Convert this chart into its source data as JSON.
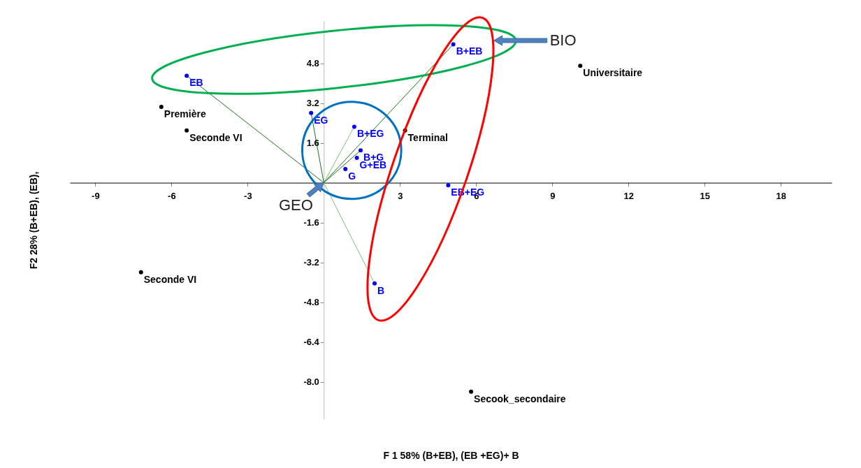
{
  "chart_data": {
    "type": "scatter",
    "xlabel": "F 1 58% (B+EB), (EB +EG)+ B",
    "ylabel": "F2 28% (B+EB), (EB),",
    "xlim": [
      -10,
      20
    ],
    "ylim": [
      -9.5,
      6.5
    ],
    "xticks": [
      -9,
      -6,
      -3,
      3,
      6,
      9,
      12,
      15,
      18
    ],
    "yticks": [
      4.8,
      3.2,
      1.6,
      -1.6,
      -3.2,
      -4.8,
      -6.4,
      {
        "value": -8,
        "label": "-8.0"
      }
    ],
    "marker": "circle",
    "series": [
      {
        "color": "#000000",
        "x": [
          -6.4,
          -5.4,
          3.2,
          10.1,
          -7.2,
          5.8
        ],
        "values": [
          3.05,
          2.1,
          2.1,
          4.7,
          -3.6,
          -8.4
        ],
        "value_labels": [
          "Première",
          "Seconde VI",
          "Terminal",
          "Universitaire",
          "Seconde VI",
          "Secook_secondaire"
        ]
      },
      {
        "color": "#0000ff",
        "x": [
          -5.4,
          -0.5,
          1.2,
          1.45,
          1.3,
          0.85,
          2.0,
          5.1,
          4.9
        ],
        "values": [
          4.3,
          2.8,
          2.25,
          1.3,
          1.0,
          0.55,
          -4.05,
          5.56,
          -0.1
        ],
        "value_labels": [
          "EB",
          "EG",
          "B+EG",
          "B+G",
          "G+EB",
          "G",
          "B",
          "B+EB",
          "EB+EG"
        ]
      },
      {
        "type": "line",
        "marker": "none",
        "color": "#006400",
        "x": [
          0,
          -5.4
        ],
        "values": [
          0,
          4.3
        ]
      },
      {
        "type": "line",
        "marker": "none",
        "color": "#006400",
        "x": [
          0,
          -0.5
        ],
        "values": [
          0,
          2.8
        ]
      },
      {
        "type": "line",
        "marker": "none",
        "color": "#66bb66",
        "x": [
          0,
          1.2
        ],
        "values": [
          0,
          2.25
        ]
      },
      {
        "type": "line",
        "marker": "none",
        "color": "#006400",
        "x": [
          0,
          1.45
        ],
        "values": [
          0,
          1.3
        ]
      },
      {
        "type": "line",
        "marker": "none",
        "color": "#66bb66",
        "x": [
          0,
          2.0
        ],
        "values": [
          0,
          -4.05
        ]
      },
      {
        "type": "line",
        "marker": "none",
        "color": "#006400",
        "x": [
          0,
          5.1
        ],
        "values": [
          0,
          5.56
        ]
      }
    ],
    "annotations": [
      {
        "text": "GEO",
        "x": 0,
        "y": 0
      },
      "BIO"
    ]
  }
}
